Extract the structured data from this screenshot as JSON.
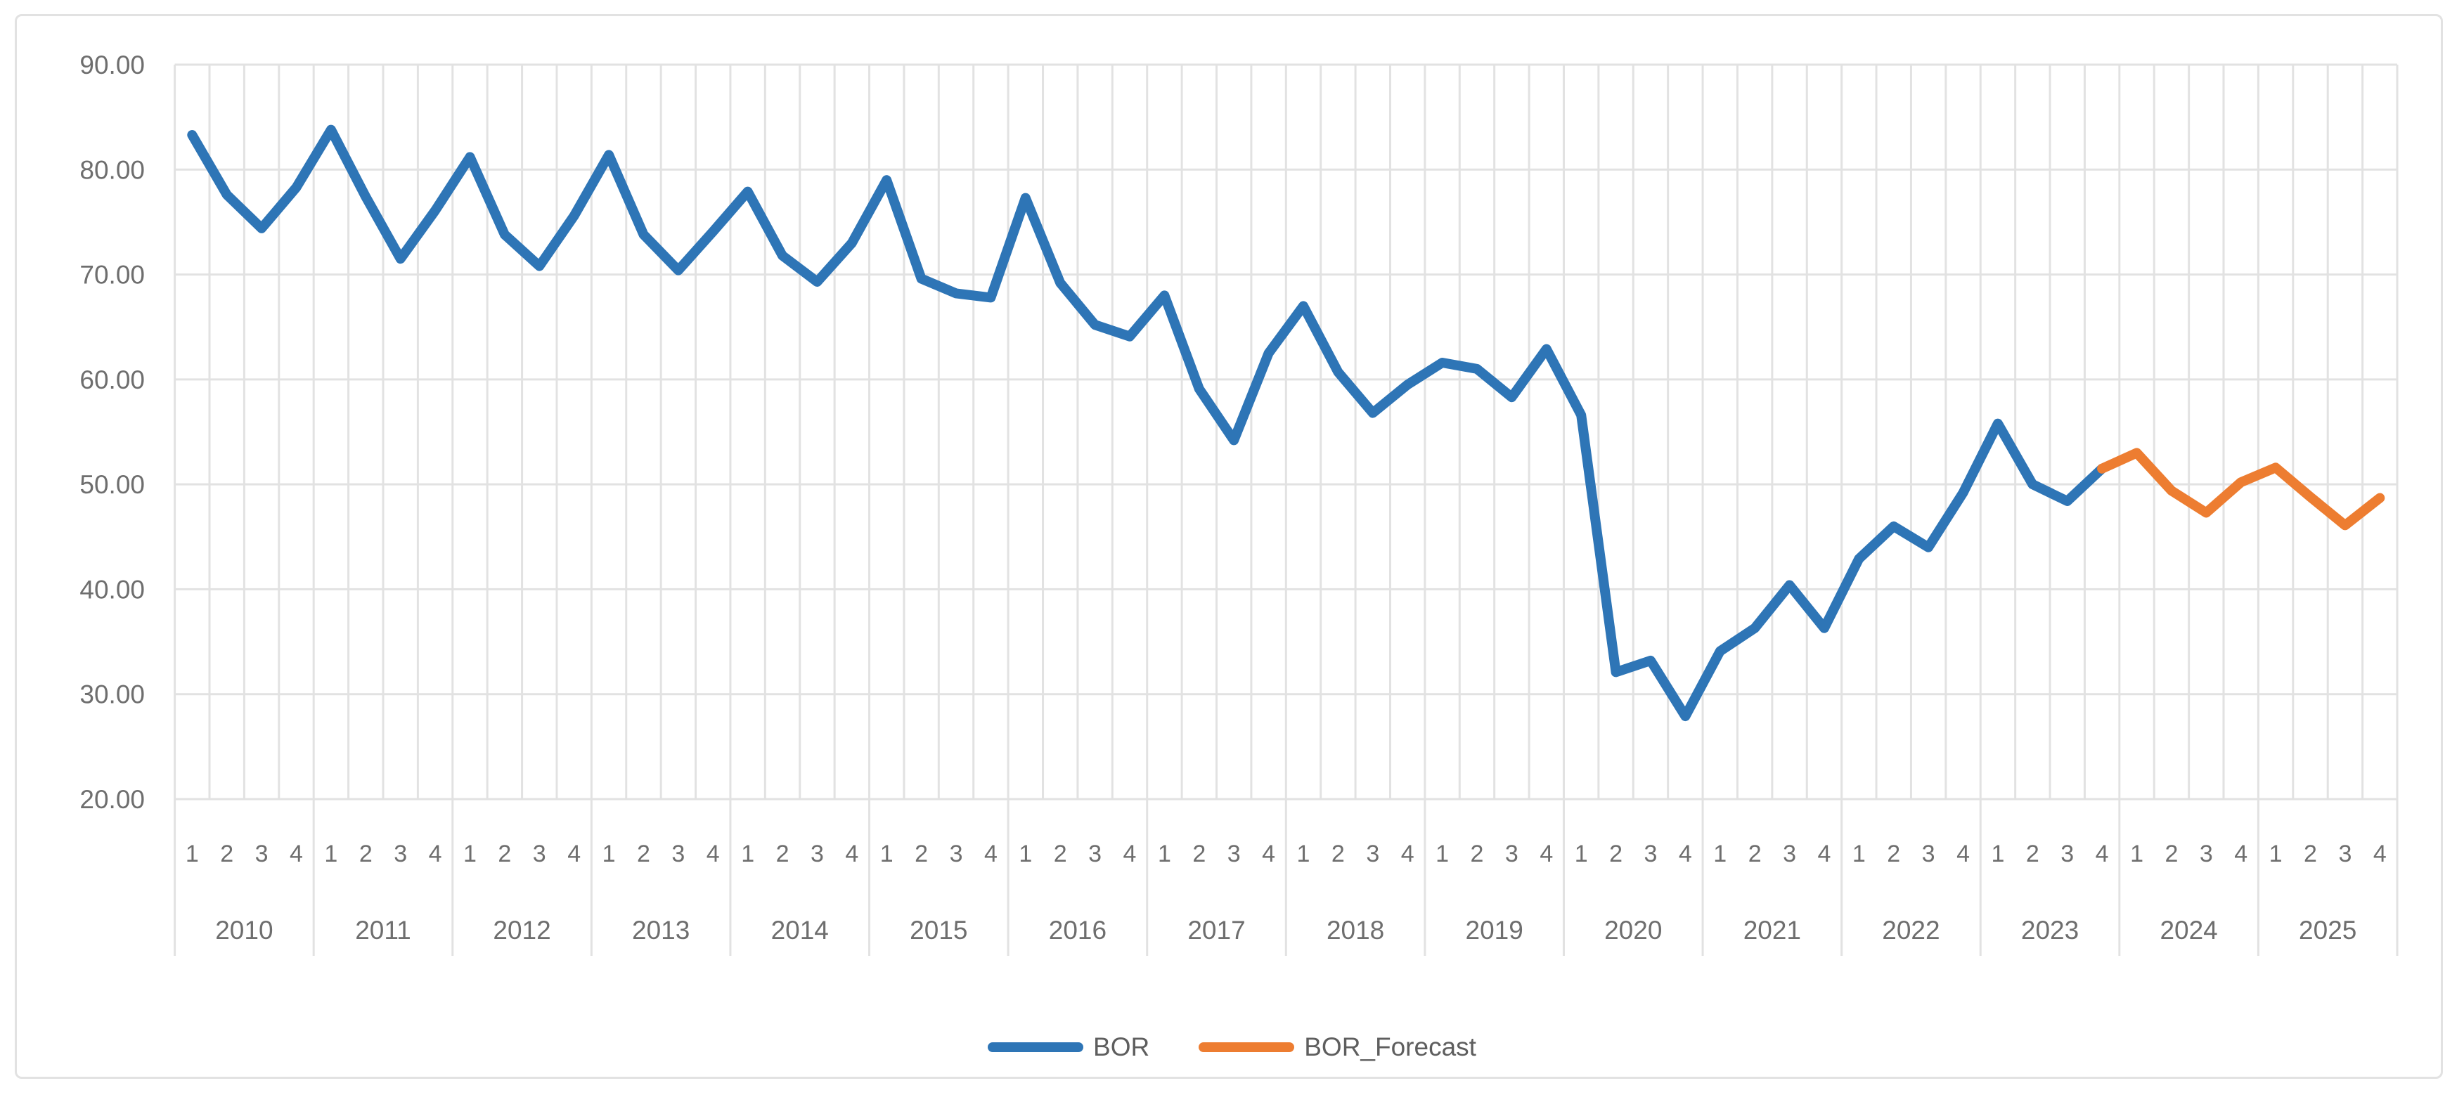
{
  "chart_data": {
    "type": "line",
    "title": "",
    "xlabel": "",
    "ylabel": "",
    "ylim": [
      20,
      90
    ],
    "grid": true,
    "legend_position": "bottom",
    "y_ticks": [
      {
        "value": 90,
        "label": "90.00"
      },
      {
        "value": 80,
        "label": "80.00"
      },
      {
        "value": 70,
        "label": "70.00"
      },
      {
        "value": 60,
        "label": "60.00"
      },
      {
        "value": 50,
        "label": "50.00"
      },
      {
        "value": 40,
        "label": "40.00"
      },
      {
        "value": 30,
        "label": "30.00"
      },
      {
        "value": 20,
        "label": "20.00"
      }
    ],
    "x_groups": [
      {
        "year": "2010",
        "quarters": [
          "1",
          "2",
          "3",
          "4"
        ]
      },
      {
        "year": "2011",
        "quarters": [
          "1",
          "2",
          "3",
          "4"
        ]
      },
      {
        "year": "2012",
        "quarters": [
          "1",
          "2",
          "3",
          "4"
        ]
      },
      {
        "year": "2013",
        "quarters": [
          "1",
          "2",
          "3",
          "4"
        ]
      },
      {
        "year": "2014",
        "quarters": [
          "1",
          "2",
          "3",
          "4"
        ]
      },
      {
        "year": "2015",
        "quarters": [
          "1",
          "2",
          "3",
          "4"
        ]
      },
      {
        "year": "2016",
        "quarters": [
          "1",
          "2",
          "3",
          "4"
        ]
      },
      {
        "year": "2017",
        "quarters": [
          "1",
          "2",
          "3",
          "4"
        ]
      },
      {
        "year": "2018",
        "quarters": [
          "1",
          "2",
          "3",
          "4"
        ]
      },
      {
        "year": "2019",
        "quarters": [
          "1",
          "2",
          "3",
          "4"
        ]
      },
      {
        "year": "2020",
        "quarters": [
          "1",
          "2",
          "3",
          "4"
        ]
      },
      {
        "year": "2021",
        "quarters": [
          "1",
          "2",
          "3",
          "4"
        ]
      },
      {
        "year": "2022",
        "quarters": [
          "1",
          "2",
          "3",
          "4"
        ]
      },
      {
        "year": "2023",
        "quarters": [
          "1",
          "2",
          "3",
          "4"
        ]
      },
      {
        "year": "2024",
        "quarters": [
          "1",
          "2",
          "3",
          "4"
        ]
      },
      {
        "year": "2025",
        "quarters": [
          "1",
          "2",
          "3",
          "4"
        ]
      }
    ],
    "series": [
      {
        "name": "BOR",
        "color": "#2E75B6",
        "start_index": 0,
        "values": [
          83.3,
          77.6,
          74.4,
          78.3,
          83.8,
          77.4,
          71.5,
          76.1,
          81.2,
          73.8,
          70.8,
          75.6,
          81.4,
          73.8,
          70.4,
          74.1,
          77.9,
          71.8,
          69.3,
          73.0,
          79.0,
          69.6,
          68.2,
          67.8,
          77.3,
          69.2,
          65.2,
          64.1,
          68.0,
          59.1,
          54.2,
          62.5,
          67.0,
          60.7,
          56.8,
          59.5,
          61.6,
          61.0,
          58.3,
          62.9,
          56.6,
          32.1,
          33.2,
          27.9,
          34.1,
          36.3,
          40.4,
          36.3,
          42.9,
          46.0,
          44.0,
          49.2,
          55.8,
          50.0,
          48.4,
          51.5
        ]
      },
      {
        "name": "BOR_Forecast",
        "color": "#ED7D31",
        "start_index": 55,
        "values": [
          51.5,
          53.0,
          49.4,
          47.3,
          50.2,
          51.6,
          48.8,
          46.1,
          48.7
        ]
      }
    ],
    "colors": {
      "gridline": "#E2E2E2",
      "frame_border": "#E2E2E2",
      "tick_text": "#6E6E6E",
      "legend_text": "#5E5E5E",
      "background": "#FFFFFF"
    }
  }
}
